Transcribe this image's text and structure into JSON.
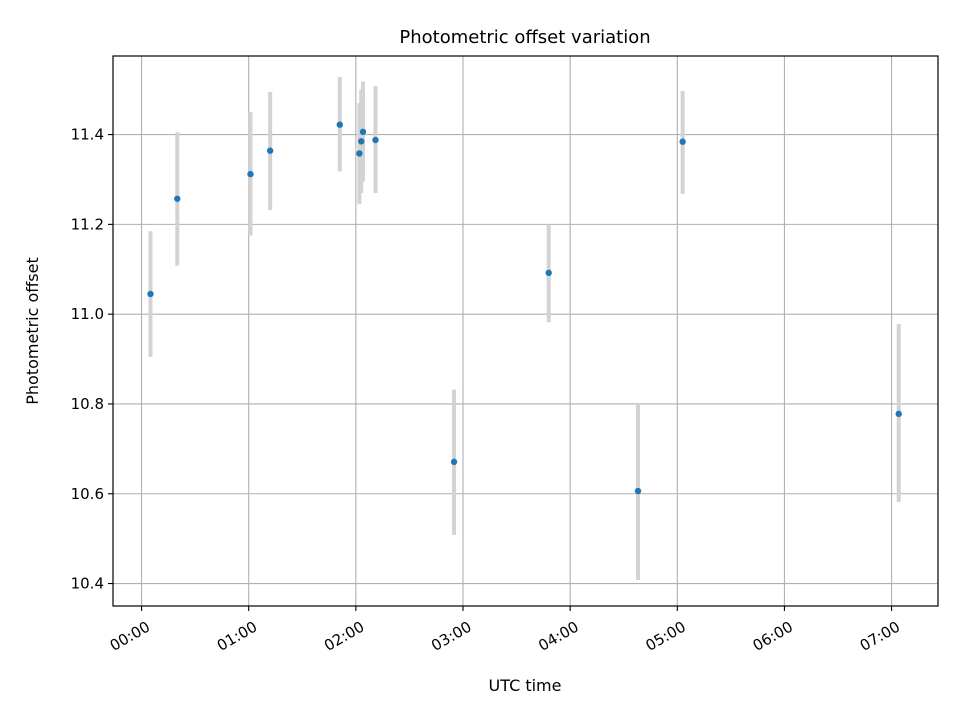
{
  "chart_data": {
    "type": "scatter",
    "title": "Photometric offset variation",
    "xlabel": "UTC time",
    "ylabel": "Photometric offset",
    "x_ticks": [
      "00:00",
      "01:00",
      "02:00",
      "03:00",
      "04:00",
      "05:00",
      "06:00",
      "07:00"
    ],
    "y_ticks": [
      "10.4",
      "10.6",
      "10.8",
      "11.0",
      "11.2",
      "11.4"
    ],
    "xlim": [
      "23:44",
      "07:26"
    ],
    "ylim": [
      10.35,
      11.575
    ],
    "grid": true,
    "points": [
      {
        "time": "00:05",
        "offset": 11.045,
        "err_low": 10.905,
        "err_high": 11.185
      },
      {
        "time": "00:20",
        "offset": 11.257,
        "err_low": 11.108,
        "err_high": 11.405
      },
      {
        "time": "01:01",
        "offset": 11.312,
        "err_low": 11.175,
        "err_high": 11.45
      },
      {
        "time": "01:12",
        "offset": 11.364,
        "err_low": 11.232,
        "err_high": 11.495
      },
      {
        "time": "01:51",
        "offset": 11.422,
        "err_low": 11.318,
        "err_high": 11.528
      },
      {
        "time": "02:02",
        "offset": 11.358,
        "err_low": 11.245,
        "err_high": 11.47
      },
      {
        "time": "02:03",
        "offset": 11.385,
        "err_low": 11.27,
        "err_high": 11.5
      },
      {
        "time": "02:04",
        "offset": 11.406,
        "err_low": 11.295,
        "err_high": 11.518
      },
      {
        "time": "02:11",
        "offset": 11.388,
        "err_low": 11.27,
        "err_high": 11.508
      },
      {
        "time": "02:55",
        "offset": 10.671,
        "err_low": 10.508,
        "err_high": 10.832
      },
      {
        "time": "03:48",
        "offset": 11.092,
        "err_low": 10.982,
        "err_high": 11.2
      },
      {
        "time": "04:38",
        "offset": 10.606,
        "err_low": 10.408,
        "err_high": 10.8
      },
      {
        "time": "05:03",
        "offset": 11.384,
        "err_low": 11.268,
        "err_high": 11.497
      },
      {
        "time": "07:04",
        "offset": 10.778,
        "err_low": 10.582,
        "err_high": 10.978
      }
    ],
    "colors": {
      "marker": "#1f77b4",
      "errorbar": "#d3d3d3",
      "grid": "#b0b0b0",
      "axes": "#000000"
    }
  }
}
